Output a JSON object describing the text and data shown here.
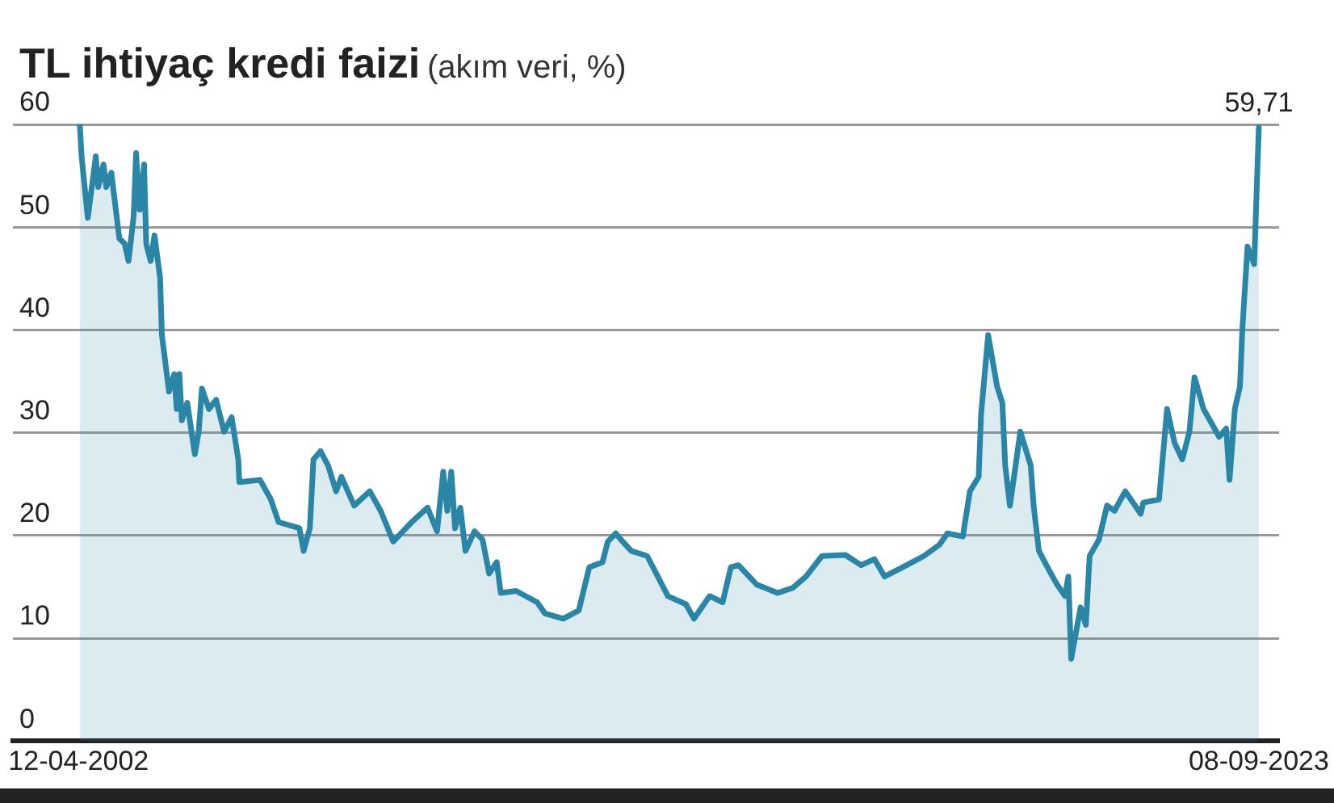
{
  "chart_data": {
    "type": "area",
    "title": "TL ihtiyaç kredi faizi",
    "subtitle": "(akım veri, %)",
    "x": [
      "2002-04-20",
      "2002-05-02",
      "2002-06-12",
      "2002-08-04",
      "2002-08-20",
      "2002-09-24",
      "2002-10-12",
      "2002-11-15",
      "2003-01-07",
      "2003-02-11",
      "2003-03-09",
      "2003-04-12",
      "2003-04-28",
      "2003-05-22",
      "2003-06-20",
      "2003-07-04",
      "2003-08-02",
      "2003-08-28",
      "2003-10-04",
      "2003-10-16",
      "2003-12-02",
      "2004-01-06",
      "2004-01-22",
      "2004-02-09",
      "2004-02-25",
      "2004-04-01",
      "2004-05-21",
      "2004-06-16",
      "2004-07-07",
      "2004-08-23",
      "2004-10-09",
      "2004-12-01",
      "2005-01-20",
      "2005-03-05",
      "2005-03-12",
      "2005-07-27",
      "2005-10-07",
      "2005-11-27",
      "2006-04-14",
      "2006-05-12",
      "2006-06-22",
      "2006-07-16",
      "2006-09-01",
      "2006-10-21",
      "2006-12-13",
      "2007-01-17",
      "2007-04-12",
      "2007-07-24",
      "2007-10-04",
      "2007-12-27",
      "2008-04-27",
      "2008-08-10",
      "2008-10-12",
      "2008-11-22",
      "2008-12-19",
      "2009-01-14",
      "2009-02-08",
      "2009-03-15",
      "2009-04-18",
      "2009-06-17",
      "2009-08-09",
      "2009-09-22",
      "2009-11-11",
      "2009-12-08",
      "2010-03-19",
      "2010-08-06",
      "2010-09-27",
      "2011-01-26",
      "2011-05-09",
      "2011-07-17",
      "2011-10-13",
      "2011-11-17",
      "2012-01-09",
      "2012-02-12",
      "2012-04-20",
      "2012-08-04",
      "2012-12-19",
      "2013-04-18",
      "2013-06-10",
      "2013-09-22",
      "2013-12-17",
      "2014-02-09",
      "2014-04-01",
      "2014-08-01",
      "2014-12-16",
      "2015-03-27",
      "2015-06-22",
      "2015-10-06",
      "2016-03-09",
      "2016-06-21",
      "2016-09-17",
      "2016-11-24",
      "2017-03-24",
      "2017-08-11",
      "2017-11-22",
      "2018-01-14",
      "2018-04-26",
      "2018-06-12",
      "2018-08-09",
      "2018-08-25",
      "2018-10-11",
      "2018-12-09",
      "2019-01-13",
      "2019-02-01",
      "2019-03-04",
      "2019-05-12",
      "2019-07-20",
      "2019-08-08",
      "2019-09-12",
      "2019-11-19",
      "2020-01-11",
      "2020-03-03",
      "2020-03-25",
      "2020-04-13",
      "2020-06-14",
      "2020-07-19",
      "2020-08-13",
      "2020-10-14",
      "2020-12-06",
      "2021-01-25",
      "2021-04-06",
      "2021-07-17",
      "2021-08-04",
      "2021-11-16",
      "2022-01-08",
      "2022-02-27",
      "2022-04-19",
      "2022-06-05",
      "2022-07-09",
      "2022-09-07",
      "2022-12-19",
      "2023-02-04",
      "2023-02-26",
      "2023-04-02",
      "2023-05-06",
      "2023-05-22",
      "2023-06-25",
      "2023-08-08",
      "2023-09-08"
    ],
    "values": [
      60,
      56.9,
      50.9,
      56.9,
      53.9,
      56.1,
      53.9,
      55.3,
      48.9,
      48.4,
      46.7,
      51.1,
      57.2,
      51.7,
      56.1,
      48.4,
      46.7,
      49.2,
      45.1,
      39.5,
      34.0,
      35.7,
      32.3,
      35.7,
      31.2,
      32.9,
      27.9,
      30.1,
      34.3,
      32.3,
      33.2,
      30.1,
      31.5,
      27.4,
      25.2,
      25.4,
      23.5,
      21.3,
      20.7,
      18.5,
      20.7,
      27.4,
      28.2,
      26.8,
      24.3,
      25.7,
      22.9,
      24.3,
      22.4,
      19.4,
      21.3,
      22.7,
      20.4,
      26.2,
      22.4,
      26.2,
      20.7,
      22.7,
      18.5,
      20.4,
      19.6,
      16.3,
      17.4,
      14.4,
      14.6,
      13.5,
      12.4,
      11.9,
      12.7,
      16.9,
      17.4,
      19.4,
      20.2,
      19.6,
      18.5,
      18.0,
      14.1,
      13.3,
      11.9,
      14.1,
      13.5,
      16.9,
      17.1,
      15.2,
      14.4,
      14.9,
      16.0,
      18.0,
      18.1,
      17.1,
      17.7,
      16.0,
      16.9,
      18.0,
      19.1,
      20.2,
      19.9,
      24.3,
      25.7,
      31.8,
      39.5,
      34.5,
      32.9,
      26.8,
      22.9,
      30.1,
      26.8,
      22.9,
      18.5,
      16.6,
      15.2,
      14.1,
      16.0,
      8.0,
      13.0,
      11.3,
      18.0,
      19.6,
      22.9,
      22.4,
      24.3,
      22.1,
      23.2,
      23.5,
      32.3,
      29.0,
      27.4,
      30.1,
      35.4,
      32.3,
      29.6,
      30.4,
      25.4,
      32.3,
      34.5,
      40.1,
      48.1,
      46.4,
      59.71
    ],
    "color": "#2a86a6",
    "xlim": [
      "2001-02-01",
      "2024-01-21"
    ],
    "xticks": [
      {
        "value": "2002-04-12",
        "label": "12-04-2002"
      },
      {
        "value": "2023-09-08",
        "label": "08-09-2023"
      }
    ],
    "ylim": [
      0,
      60
    ],
    "yticks": [
      0,
      10,
      20,
      30,
      40,
      50,
      60
    ],
    "grid": "y",
    "legend": false,
    "annotations": [
      {
        "text": "59,71",
        "x": "2023-09-08",
        "y": 59.71
      }
    ]
  }
}
